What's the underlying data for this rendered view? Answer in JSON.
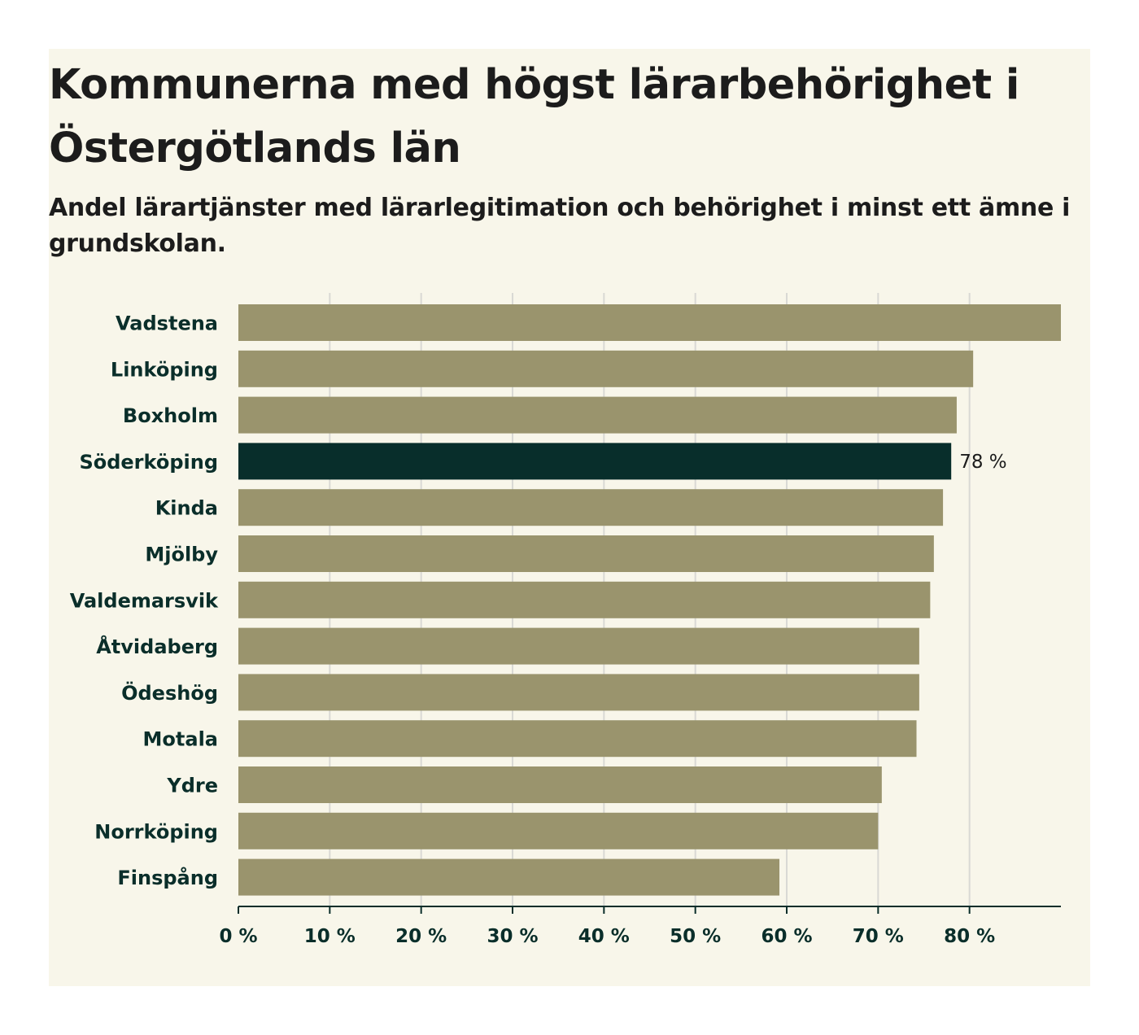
{
  "title": "Kommunerna med högst lärarbehörighet i Östergötlands län",
  "subtitle": "Andel lärartjänster med lärarlegitimation och behörighet i minst ett ämne i grundskolan.",
  "colors": {
    "background": "#f8f6ea",
    "bar": "#9a946d",
    "highlight": "#082e2b",
    "label": "#0a2e2a",
    "grid": "#d9d9d4",
    "axis": "#0a2e2a"
  },
  "chart_data": {
    "type": "bar",
    "orientation": "horizontal",
    "title": "Kommunerna med högst lärarbehörighet i Östergötlands län",
    "subtitle": "Andel lärartjänster med lärarlegitimation och behörighet i minst ett ämne i grundskolan.",
    "categories": [
      "Vadstena",
      "Linköping",
      "Boxholm",
      "Söderköping",
      "Kinda",
      "Mjölby",
      "Valdemarsvik",
      "Åtvidaberg",
      "Ödeshög",
      "Motala",
      "Ydre",
      "Norrköping",
      "Finspång"
    ],
    "values": [
      90,
      80.4,
      78.6,
      78,
      77.1,
      76.1,
      75.7,
      74.5,
      74.5,
      74.2,
      70.4,
      70,
      59.2
    ],
    "highlight": {
      "category": "Söderköping",
      "label": "78 %"
    },
    "xlim": [
      0,
      90
    ],
    "xticks": [
      0,
      10,
      20,
      30,
      40,
      50,
      60,
      70,
      80
    ],
    "xtick_labels": [
      "0 %",
      "10 %",
      "20 %",
      "30 %",
      "40 %",
      "50 %",
      "60 %",
      "70 %",
      "80 %"
    ],
    "xlabel": "",
    "ylabel": "",
    "grid": true,
    "legend": false
  }
}
